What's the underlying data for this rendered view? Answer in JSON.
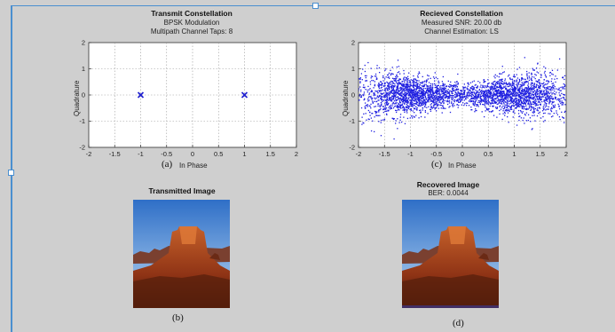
{
  "figure": {
    "left_plot": {
      "title": "Transmit Constellation",
      "subtitle1": "BPSK Modulation",
      "subtitle2": "Multipath Channel Taps: 8",
      "caption": "(a)",
      "xlabel": "In Phase",
      "ylabel": "Quadrature"
    },
    "right_plot": {
      "title": "Recieved Constellation",
      "subtitle1": "Measured SNR: 20.00 db",
      "subtitle2": "Channel Estimation: LS",
      "caption": "(c)",
      "xlabel": "In Phase",
      "ylabel": "Quadrature"
    },
    "left_image": {
      "title": "Transmitted Image",
      "caption": "(b)"
    },
    "right_image": {
      "title": "Recovered Image",
      "subtitle": "BER: 0.0044",
      "caption": "(d)"
    }
  },
  "chart_data": [
    {
      "type": "scatter",
      "title": "Transmit Constellation",
      "subtitle": [
        "BPSK Modulation",
        "Multipath Channel Taps: 8"
      ],
      "xlabel": "In Phase",
      "ylabel": "Quadrature",
      "xlim": [
        -2,
        2
      ],
      "ylim": [
        -2,
        2
      ],
      "xticks": [
        -2,
        -1.5,
        -1,
        -0.5,
        0,
        0.5,
        1,
        1.5,
        2
      ],
      "yticks": [
        -2,
        -1,
        0,
        1,
        2
      ],
      "grid": true,
      "marker": "x",
      "color": "#1f1fd0",
      "points": [
        [
          -1,
          0
        ],
        [
          1,
          0
        ]
      ]
    },
    {
      "type": "scatter",
      "title": "Recieved Constellation",
      "subtitle": [
        "Measured SNR: 20.00 db",
        "Channel Estimation: LS"
      ],
      "xlabel": "In Phase",
      "ylabel": "Quadrature",
      "xlim": [
        -2,
        2
      ],
      "ylim": [
        -2,
        2
      ],
      "xticks": [
        -2,
        -1.5,
        -1,
        -0.5,
        0,
        0.5,
        1,
        1.5,
        2
      ],
      "yticks": [
        -2,
        -1,
        0,
        1,
        2
      ],
      "grid": true,
      "marker": "dot",
      "color": "#1f1fe0",
      "clusters": [
        {
          "center": [
            -1,
            0
          ],
          "x_spread": 0.55,
          "y_spread": 0.35,
          "points": 1800
        },
        {
          "center": [
            1,
            0
          ],
          "x_spread": 0.55,
          "y_spread": 0.35,
          "points": 1800
        }
      ]
    }
  ],
  "colors": {
    "figure_bg": "#cfcfcf",
    "axes_bg": "#ffffff",
    "grid": "#9a9a9a",
    "marker": "#1f1fd0"
  }
}
